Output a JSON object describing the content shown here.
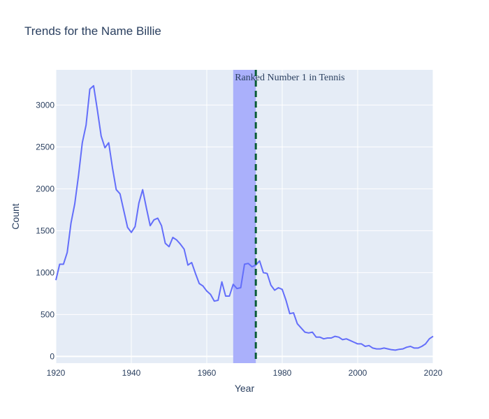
{
  "colors": {
    "plot_bg": "#e5ecf6",
    "grid": "#ffffff",
    "line": "#636efa",
    "band": "#aab0fb",
    "vline": "#0a5c36",
    "text": "#2a3f5f"
  },
  "chart_data": {
    "type": "line",
    "title": "Trends for the Name Billie",
    "xlabel": "Year",
    "ylabel": "Count",
    "xlim": [
      1920,
      2020
    ],
    "ylim": [
      -80,
      3420
    ],
    "xticks": [
      1920,
      1940,
      1960,
      1980,
      2000,
      2020
    ],
    "yticks": [
      0,
      500,
      1000,
      1500,
      2000,
      2500,
      3000
    ],
    "grid": true,
    "series": [
      {
        "name": "Billie",
        "x": [
          1920,
          1921,
          1922,
          1923,
          1924,
          1925,
          1926,
          1927,
          1928,
          1929,
          1930,
          1931,
          1932,
          1933,
          1934,
          1935,
          1936,
          1937,
          1938,
          1939,
          1940,
          1941,
          1942,
          1943,
          1944,
          1945,
          1946,
          1947,
          1948,
          1949,
          1950,
          1951,
          1952,
          1953,
          1954,
          1955,
          1956,
          1957,
          1958,
          1959,
          1960,
          1961,
          1962,
          1963,
          1964,
          1965,
          1966,
          1967,
          1968,
          1969,
          1970,
          1971,
          1972,
          1973,
          1974,
          1975,
          1976,
          1977,
          1978,
          1979,
          1980,
          1981,
          1982,
          1983,
          1984,
          1985,
          1986,
          1987,
          1988,
          1989,
          1990,
          1991,
          1992,
          1993,
          1994,
          1995,
          1996,
          1997,
          1998,
          1999,
          2000,
          2001,
          2002,
          2003,
          2004,
          2005,
          2006,
          2007,
          2008,
          2009,
          2010,
          2011,
          2012,
          2013,
          2014,
          2015,
          2016,
          2017,
          2018,
          2019,
          2020
        ],
        "y": [
          910,
          1100,
          1100,
          1240,
          1590,
          1820,
          2160,
          2550,
          2760,
          3190,
          3230,
          2940,
          2630,
          2490,
          2550,
          2250,
          1990,
          1940,
          1740,
          1540,
          1480,
          1550,
          1830,
          1990,
          1770,
          1560,
          1630,
          1650,
          1560,
          1350,
          1310,
          1420,
          1390,
          1340,
          1280,
          1090,
          1120,
          990,
          870,
          840,
          780,
          740,
          660,
          670,
          890,
          720,
          720,
          860,
          810,
          820,
          1100,
          1110,
          1070,
          1090,
          1140,
          1000,
          990,
          850,
          790,
          820,
          800,
          670,
          510,
          520,
          390,
          340,
          290,
          280,
          290,
          230,
          230,
          210,
          220,
          220,
          240,
          230,
          200,
          210,
          190,
          170,
          150,
          150,
          120,
          130,
          100,
          90,
          90,
          100,
          90,
          80,
          75,
          85,
          90,
          110,
          120,
          100,
          100,
          120,
          150,
          210,
          240
        ]
      }
    ],
    "shaded_region": {
      "x0": 1967,
      "x1": 1973
    },
    "vertical_line": {
      "x": 1973,
      "style": "dashed"
    },
    "annotation": {
      "text": "Ranked Number 1 in Tennis",
      "x": 1973,
      "position": "top"
    }
  }
}
